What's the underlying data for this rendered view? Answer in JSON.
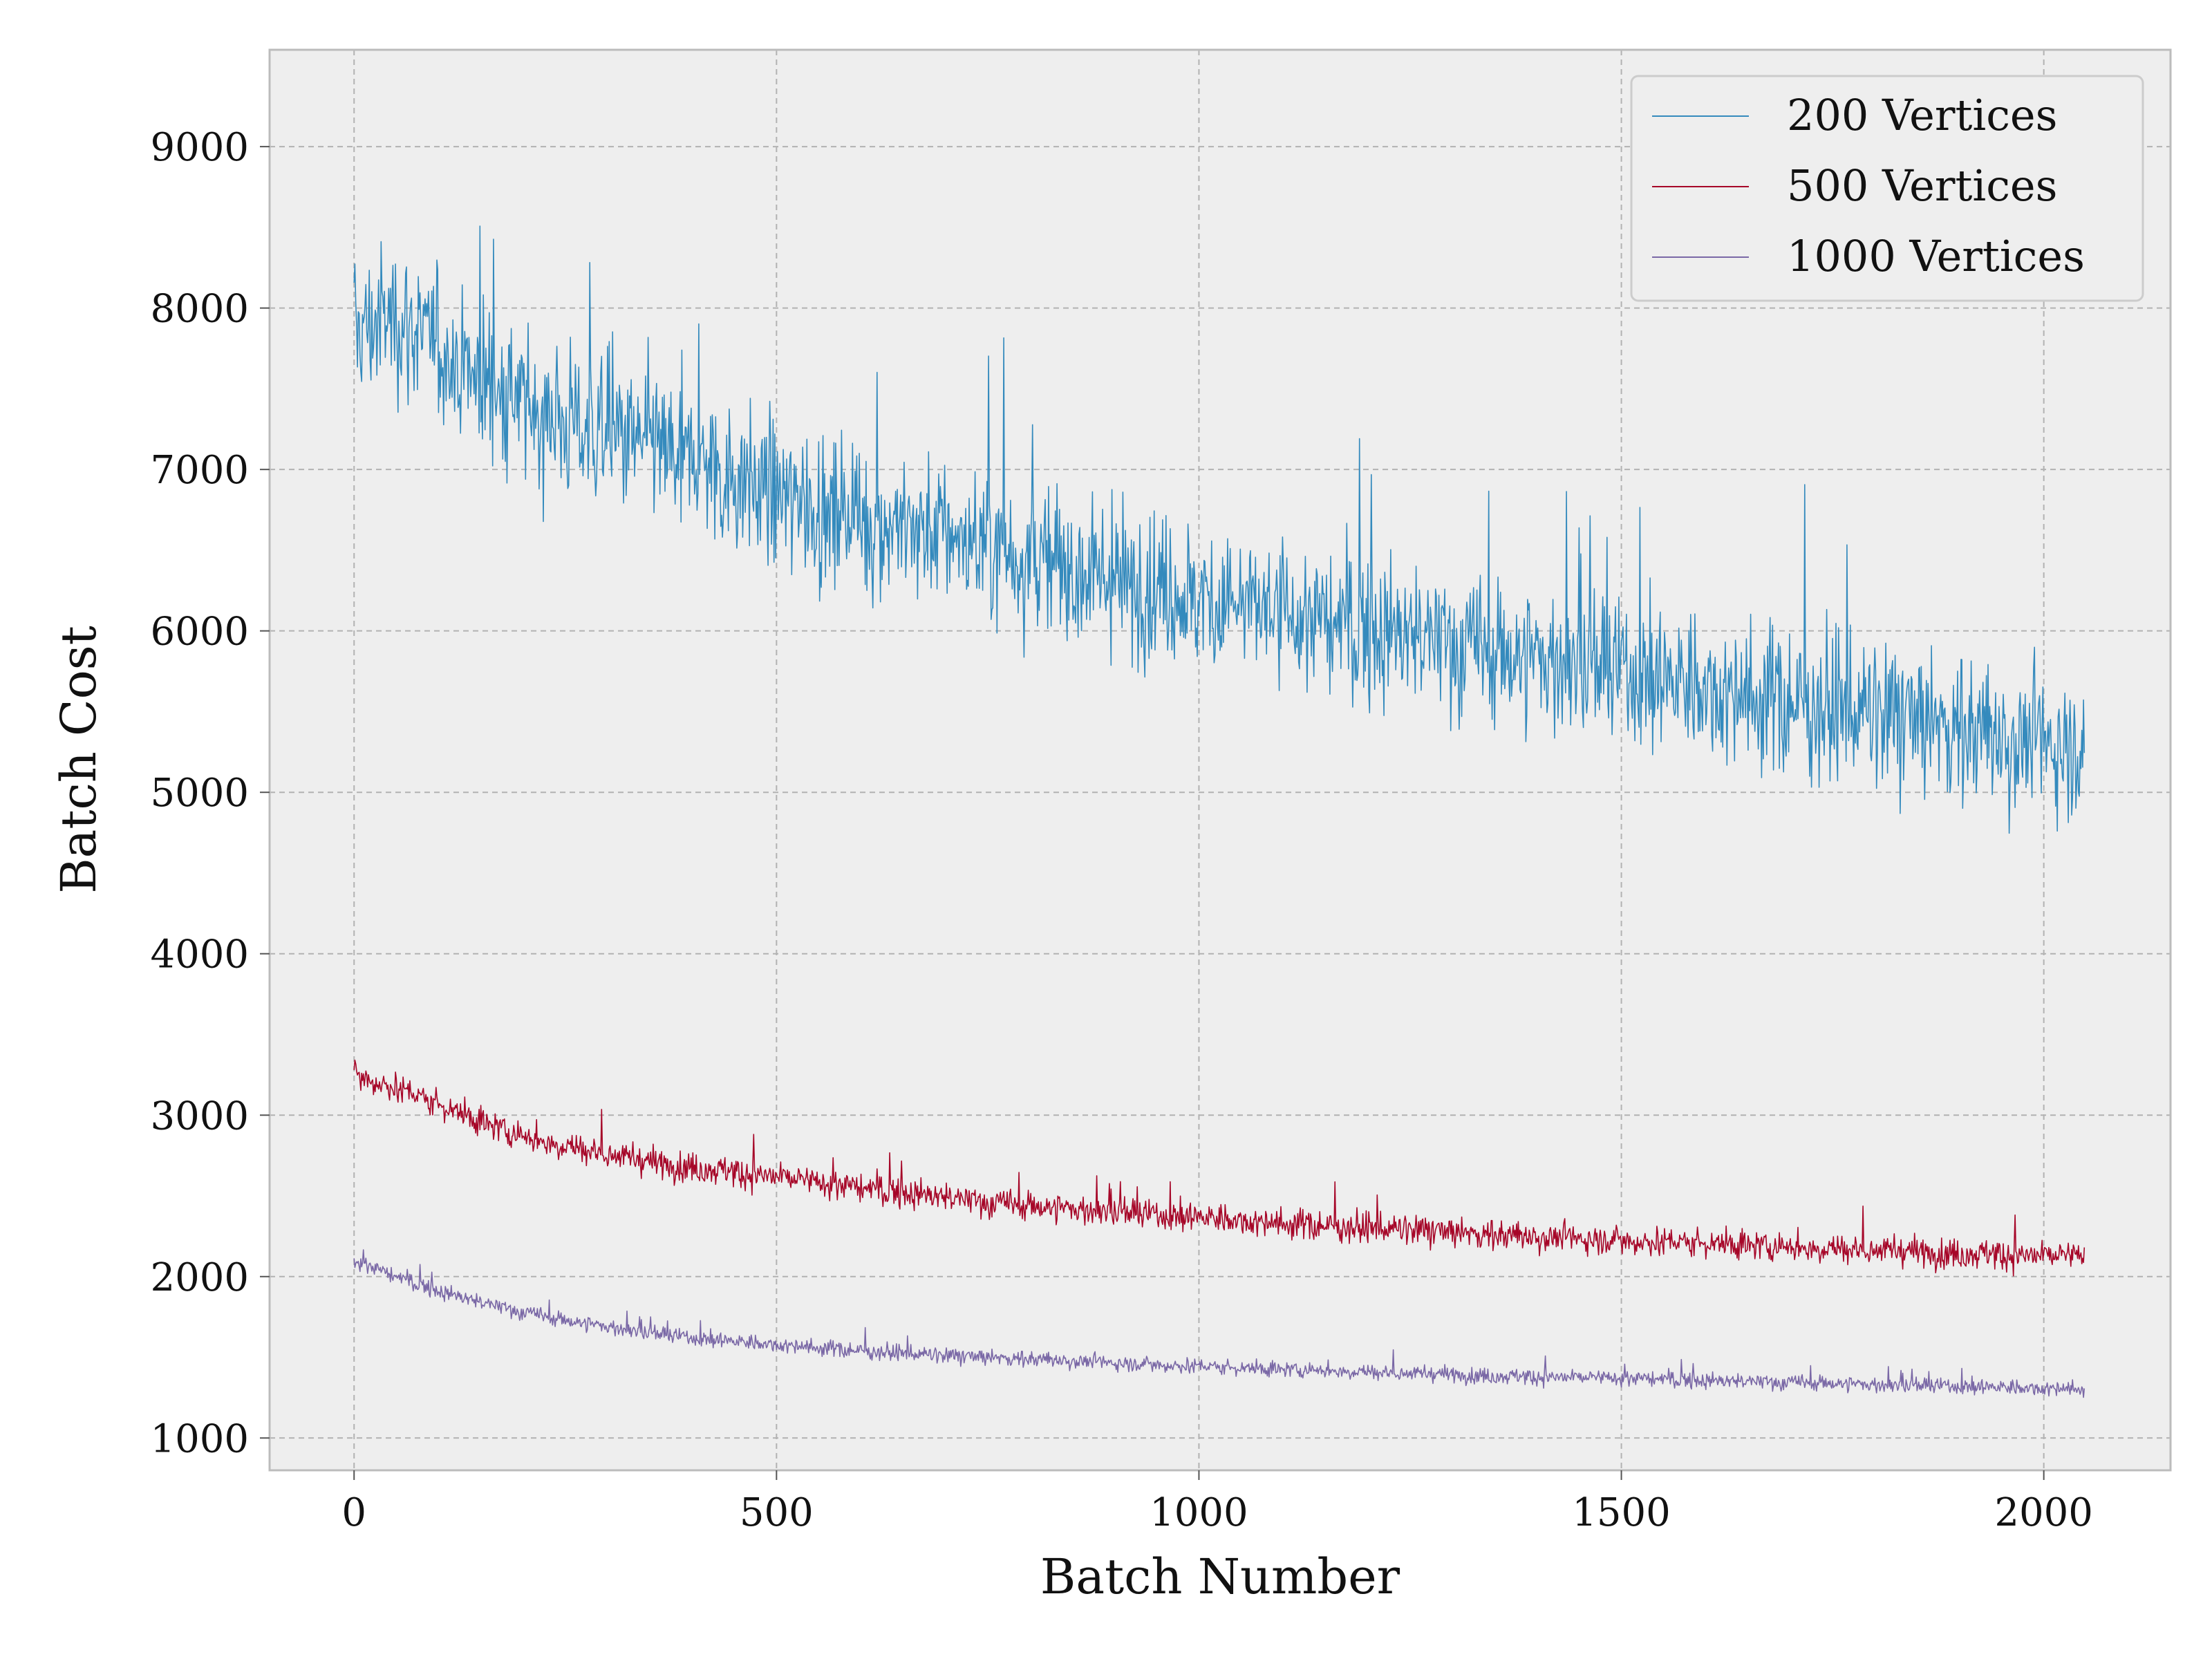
{
  "chart_data": {
    "type": "line",
    "xlabel": "Batch Number",
    "ylabel": "Batch Cost",
    "xlim": [
      -100,
      2150
    ],
    "ylim": [
      800,
      9600
    ],
    "xticks": [
      0,
      500,
      1000,
      1500,
      2000
    ],
    "yticks": [
      1000,
      2000,
      3000,
      4000,
      5000,
      6000,
      7000,
      8000,
      9000
    ],
    "xtick_labels": [
      "0",
      "500",
      "1000",
      "1500",
      "2000"
    ],
    "ytick_labels": [
      "1000",
      "2000",
      "3000",
      "4000",
      "5000",
      "6000",
      "7000",
      "8000",
      "9000"
    ],
    "grid": true,
    "legend_position": "top-right",
    "x": [
      0,
      50,
      100,
      150,
      200,
      250,
      300,
      350,
      400,
      450,
      500,
      550,
      600,
      650,
      700,
      750,
      800,
      850,
      900,
      950,
      1000,
      1050,
      1100,
      1150,
      1200,
      1250,
      1300,
      1350,
      1400,
      1450,
      1500,
      1550,
      1600,
      1650,
      1700,
      1750,
      1800,
      1850,
      1900,
      1950,
      2000,
      2048
    ],
    "series": [
      {
        "name": "200 Vertices",
        "color": "#348abd",
        "values": [
          7850,
          7950,
          7750,
          7550,
          7400,
          7300,
          7200,
          7150,
          7050,
          6950,
          6850,
          6750,
          6700,
          6650,
          6600,
          6520,
          6450,
          6380,
          6320,
          6270,
          6200,
          6150,
          6100,
          6050,
          6010,
          5960,
          5920,
          5870,
          5830,
          5780,
          5740,
          5700,
          5660,
          5600,
          5560,
          5520,
          5480,
          5440,
          5400,
          5350,
          5300,
          5280
        ],
        "noise": 420
      },
      {
        "name": "500 Vertices",
        "color": "#a60628",
        "values": [
          3250,
          3170,
          3070,
          2960,
          2870,
          2810,
          2760,
          2710,
          2680,
          2650,
          2620,
          2580,
          2550,
          2520,
          2490,
          2460,
          2440,
          2420,
          2400,
          2380,
          2370,
          2350,
          2330,
          2315,
          2300,
          2290,
          2275,
          2260,
          2250,
          2235,
          2225,
          2215,
          2210,
          2195,
          2185,
          2175,
          2165,
          2155,
          2145,
          2140,
          2130,
          2125
        ],
        "noise": 85
      },
      {
        "name": "1000 Vertices",
        "color": "#7a68a6",
        "values": [
          2100,
          2000,
          1910,
          1840,
          1780,
          1730,
          1690,
          1650,
          1620,
          1600,
          1580,
          1560,
          1540,
          1525,
          1510,
          1500,
          1490,
          1480,
          1465,
          1455,
          1445,
          1435,
          1425,
          1420,
          1410,
          1400,
          1395,
          1385,
          1380,
          1375,
          1370,
          1365,
          1355,
          1350,
          1345,
          1340,
          1330,
          1325,
          1320,
          1315,
          1310,
          1305
        ],
        "noise": 45
      }
    ]
  }
}
